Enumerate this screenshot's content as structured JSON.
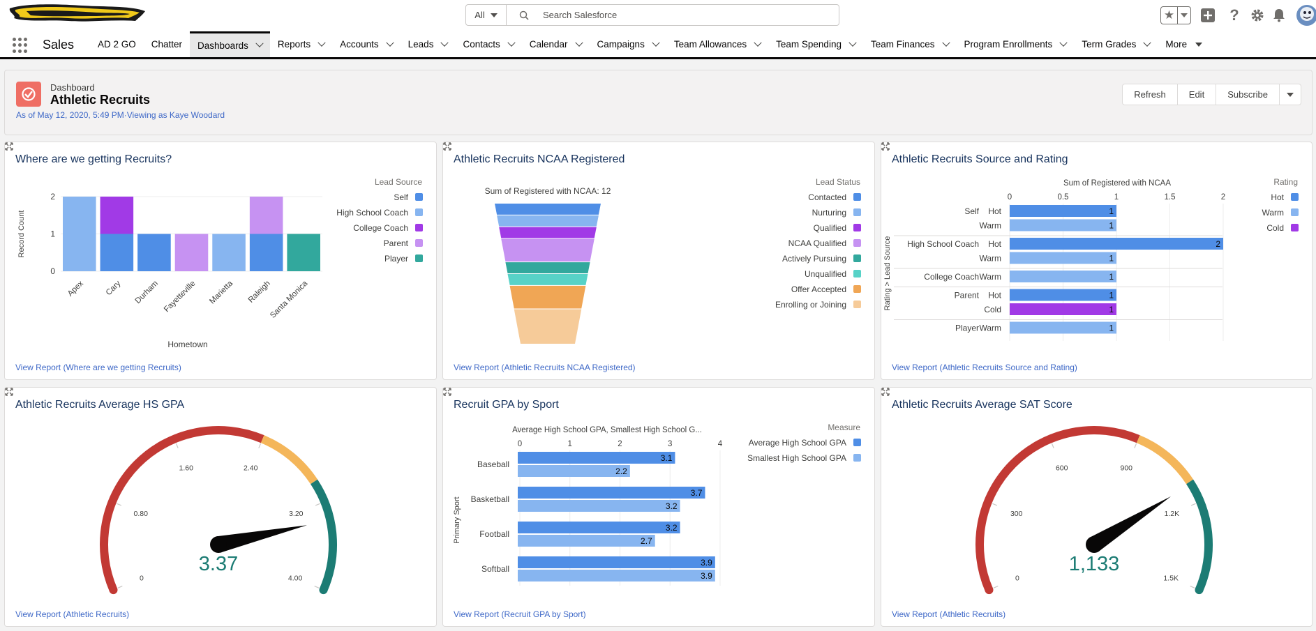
{
  "search": {
    "scope": "All",
    "placeholder": "Search Salesforce"
  },
  "nav": {
    "app_name": "Sales",
    "items": [
      {
        "label": "AD 2 GO",
        "caret": false,
        "active": false
      },
      {
        "label": "Chatter",
        "caret": false,
        "active": false
      },
      {
        "label": "Dashboards",
        "caret": true,
        "active": true
      },
      {
        "label": "Reports",
        "caret": true,
        "active": false
      },
      {
        "label": "Accounts",
        "caret": true,
        "active": false
      },
      {
        "label": "Leads",
        "caret": true,
        "active": false
      },
      {
        "label": "Contacts",
        "caret": true,
        "active": false
      },
      {
        "label": "Calendar",
        "caret": true,
        "active": false
      },
      {
        "label": "Campaigns",
        "caret": true,
        "active": false
      },
      {
        "label": "Team Allowances",
        "caret": true,
        "active": false
      },
      {
        "label": "Team Spending",
        "caret": true,
        "active": false
      },
      {
        "label": "Team Finances",
        "caret": true,
        "active": false
      },
      {
        "label": "Program Enrollments",
        "caret": true,
        "active": false
      },
      {
        "label": "Term Grades",
        "caret": true,
        "active": false
      },
      {
        "label": "More",
        "caret": true,
        "active": false
      }
    ]
  },
  "header": {
    "label": "Dashboard",
    "title": "Athletic Recruits",
    "subtitle": "As of May 12, 2020, 5:49 PM·Viewing as Kaye Woodard",
    "buttons": {
      "refresh": "Refresh",
      "edit": "Edit",
      "subscribe": "Subscribe"
    }
  },
  "colors": {
    "blue": "#4f8ee6",
    "lightblue": "#87b5f0",
    "purple": "#a13ae6",
    "lavender": "#c692f2",
    "teal": "#32a89d",
    "aqua": "#57d2c7",
    "orange": "#f0a655",
    "peach": "#f6cb99",
    "red": "#c23934",
    "yellow": "#f4b65a",
    "gaugeteal": "#1c7c74",
    "link": "#3e68c7"
  },
  "cards": [
    {
      "title": "Where are we getting Recruits?",
      "link": "View Report (Where are we getting Recruits)"
    },
    {
      "title": "Athletic Recruits NCAA Registered",
      "link": "View Report (Athletic Recruits NCAA Registered)"
    },
    {
      "title": "Athletic Recruits Source and Rating",
      "link": "View Report (Athletic Recruits Source and Rating)"
    },
    {
      "title": "Athletic Recruits Average HS GPA",
      "link": "View Report (Athletic Recruits)"
    },
    {
      "title": "Recruit GPA by Sport",
      "link": "View Report (Recruit GPA by Sport)"
    },
    {
      "title": "Athletic Recruits Average SAT Score",
      "link": "View Report (Athletic Recruits)"
    }
  ],
  "chart_data": [
    {
      "type": "bar",
      "stacked": true,
      "title": "Where are we getting Recruits?",
      "xlabel": "Hometown",
      "ylabel": "Record Count",
      "ylim": [
        0,
        2
      ],
      "yticks": [
        "0",
        "1",
        "2"
      ],
      "categories": [
        "Apex",
        "Cary",
        "Durham",
        "Fayetteville",
        "Marietta",
        "Raleigh",
        "Santa Monica"
      ],
      "legend_title": "Lead Source",
      "series": [
        {
          "name": "Self",
          "color": "#4f8ee6",
          "values": [
            0,
            1,
            1,
            0,
            0,
            1,
            0
          ]
        },
        {
          "name": "High School Coach",
          "color": "#87b5f0",
          "values": [
            2,
            0,
            0,
            0,
            1,
            0,
            0
          ]
        },
        {
          "name": "College Coach",
          "color": "#a13ae6",
          "values": [
            0,
            1,
            0,
            0,
            0,
            0,
            0
          ]
        },
        {
          "name": "Parent",
          "color": "#c692f2",
          "values": [
            0,
            0,
            0,
            1,
            0,
            1,
            0
          ]
        },
        {
          "name": "Player",
          "color": "#32a89d",
          "values": [
            0,
            0,
            0,
            0,
            0,
            0,
            1
          ]
        }
      ]
    },
    {
      "type": "funnel",
      "title": "Athletic Recruits NCAA Registered",
      "subtitle": "Sum of Registered with NCAA: 12",
      "legend_title": "Lead Status",
      "stages": [
        {
          "name": "Contacted",
          "color": "#4f8ee6",
          "value": 1
        },
        {
          "name": "Nurturing",
          "color": "#87b5f0",
          "value": 1
        },
        {
          "name": "Qualified",
          "color": "#a13ae6",
          "value": 1
        },
        {
          "name": "NCAA Qualified",
          "color": "#c692f2",
          "value": 2
        },
        {
          "name": "Actively Pursuing",
          "color": "#32a89d",
          "value": 1
        },
        {
          "name": "Unqualified",
          "color": "#57d2c7",
          "value": 1
        },
        {
          "name": "Offer Accepted",
          "color": "#f0a655",
          "value": 2
        },
        {
          "name": "Enrolling or Joining",
          "color": "#f6cb99",
          "value": 3
        }
      ]
    },
    {
      "type": "bar",
      "orientation": "horizontal",
      "title": "Athletic Recruits Source and Rating",
      "xlabel": "Sum of Registered with NCAA",
      "ylabel": "Rating > Lead Source",
      "xlim": [
        0,
        2
      ],
      "xticks": [
        "0",
        "0.5",
        "1",
        "1.5",
        "2"
      ],
      "legend_title": "Rating",
      "legend": [
        {
          "name": "Hot",
          "color": "#4f8ee6"
        },
        {
          "name": "Warm",
          "color": "#87b5f0"
        },
        {
          "name": "Cold",
          "color": "#a13ae6"
        }
      ],
      "groups": [
        {
          "source": "Self",
          "rows": [
            {
              "rating": "Hot",
              "value": 1
            },
            {
              "rating": "Warm",
              "value": 1
            }
          ]
        },
        {
          "source": "High School Coach",
          "rows": [
            {
              "rating": "Hot",
              "value": 2
            },
            {
              "rating": "Warm",
              "value": 1
            }
          ]
        },
        {
          "source": "College Coach",
          "rows": [
            {
              "rating": "Warm",
              "value": 1
            }
          ]
        },
        {
          "source": "Parent",
          "rows": [
            {
              "rating": "Hot",
              "value": 1
            },
            {
              "rating": "Cold",
              "value": 1
            }
          ]
        },
        {
          "source": "Player",
          "rows": [
            {
              "rating": "Warm",
              "value": 1
            }
          ]
        }
      ]
    },
    {
      "type": "gauge",
      "title": "Athletic Recruits Average HS GPA",
      "min": 0,
      "max": 4,
      "value": 3.37,
      "value_label": "3.37",
      "tick_labels": [
        "0",
        "0.80",
        "1.60",
        "2.40",
        "3.20",
        "4.00"
      ],
      "bands": [
        {
          "to": 2.4,
          "color": "#c23934"
        },
        {
          "to": 3.0,
          "color": "#f4b65a"
        },
        {
          "to": 4.0,
          "color": "#1c7c74"
        }
      ]
    },
    {
      "type": "bar",
      "orientation": "horizontal",
      "title": "Recruit GPA by Sport",
      "subtitle": "Average High School GPA, Smallest High School G...",
      "ylabel": "Primary Sport",
      "xlim": [
        0,
        4
      ],
      "xticks": [
        "0",
        "1",
        "2",
        "3",
        "4"
      ],
      "legend_title": "Measure",
      "categories": [
        "Baseball",
        "Basketball",
        "Football",
        "Softball"
      ],
      "series": [
        {
          "name": "Average High School GPA",
          "color": "#4f8ee6",
          "values": [
            3.1,
            3.7,
            3.2,
            3.9
          ]
        },
        {
          "name": "Smallest High School GPA",
          "color": "#87b5f0",
          "values": [
            2.2,
            3.2,
            2.7,
            3.9
          ]
        }
      ]
    },
    {
      "type": "gauge",
      "title": "Athletic Recruits Average SAT Score",
      "min": 0,
      "max": 1500,
      "value": 1133,
      "value_label": "1,133",
      "tick_labels": [
        "0",
        "300",
        "600",
        "900",
        "1.2K",
        "1.5K"
      ],
      "bands": [
        {
          "to": 900,
          "color": "#c23934"
        },
        {
          "to": 1125,
          "color": "#f4b65a"
        },
        {
          "to": 1500,
          "color": "#1c7c74"
        }
      ]
    }
  ]
}
